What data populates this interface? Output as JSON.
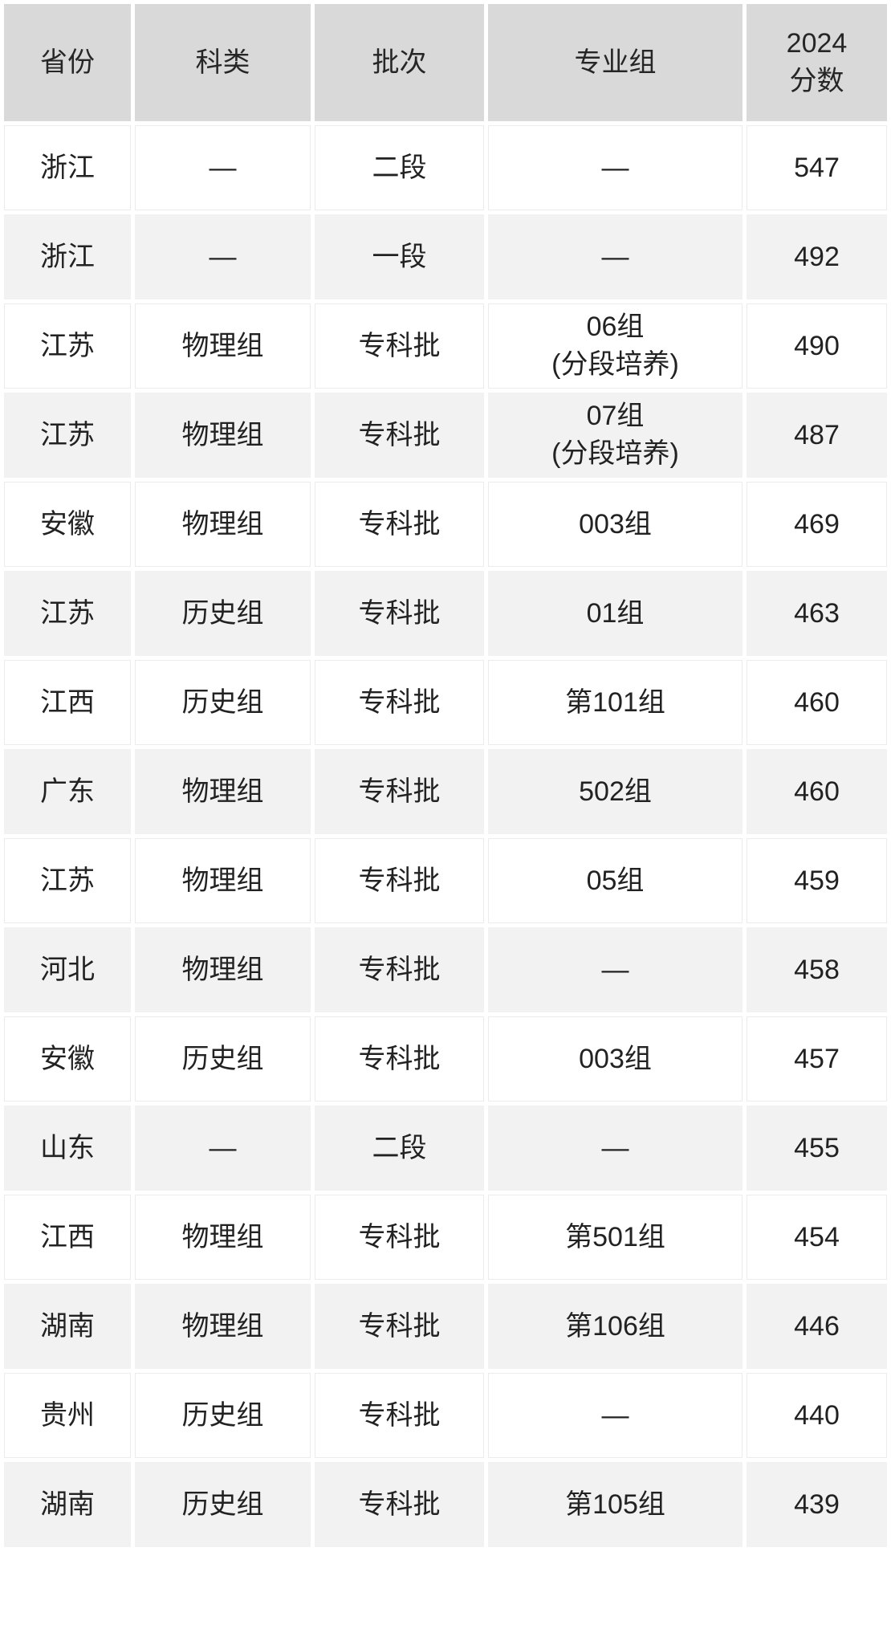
{
  "table": {
    "columns": [
      {
        "key": "province",
        "label": "省份"
      },
      {
        "key": "category",
        "label": "科类"
      },
      {
        "key": "batch",
        "label": "批次"
      },
      {
        "key": "group",
        "label": "专业组"
      },
      {
        "key": "score",
        "label": "2024\n分数"
      }
    ],
    "empty_marker": "—",
    "rows": [
      {
        "province": "浙江",
        "category": "—",
        "batch": "二段",
        "group": "—",
        "score": "547"
      },
      {
        "province": "浙江",
        "category": "—",
        "batch": "一段",
        "group": "—",
        "score": "492"
      },
      {
        "province": "江苏",
        "category": "物理组",
        "batch": "专科批",
        "group": "06组\n(分段培养)",
        "score": "490"
      },
      {
        "province": "江苏",
        "category": "物理组",
        "batch": "专科批",
        "group": "07组\n(分段培养)",
        "score": "487"
      },
      {
        "province": "安徽",
        "category": "物理组",
        "batch": "专科批",
        "group": "003组",
        "score": "469"
      },
      {
        "province": "江苏",
        "category": "历史组",
        "batch": "专科批",
        "group": "01组",
        "score": "463"
      },
      {
        "province": "江西",
        "category": "历史组",
        "batch": "专科批",
        "group": "第101组",
        "score": "460"
      },
      {
        "province": "广东",
        "category": "物理组",
        "batch": "专科批",
        "group": "502组",
        "score": "460"
      },
      {
        "province": "江苏",
        "category": "物理组",
        "batch": "专科批",
        "group": "05组",
        "score": "459"
      },
      {
        "province": "河北",
        "category": "物理组",
        "batch": "专科批",
        "group": "—",
        "score": "458"
      },
      {
        "province": "安徽",
        "category": "历史组",
        "batch": "专科批",
        "group": "003组",
        "score": "457"
      },
      {
        "province": "山东",
        "category": "—",
        "batch": "二段",
        "group": "—",
        "score": "455"
      },
      {
        "province": "江西",
        "category": "物理组",
        "batch": "专科批",
        "group": "第501组",
        "score": "454"
      },
      {
        "province": "湖南",
        "category": "物理组",
        "batch": "专科批",
        "group": "第106组",
        "score": "446"
      },
      {
        "province": "贵州",
        "category": "历史组",
        "batch": "专科批",
        "group": "—",
        "score": "440"
      },
      {
        "province": "湖南",
        "category": "历史组",
        "batch": "专科批",
        "group": "第105组",
        "score": "439"
      }
    ],
    "colors": {
      "header_bg": "#d9d9d9",
      "row_bg": "#ffffff",
      "row_alt_bg": "#f2f2f2",
      "text": "#222222"
    }
  },
  "chart_data": {
    "type": "table",
    "title": "",
    "columns": [
      "省份",
      "科类",
      "批次",
      "专业组",
      "2024分数"
    ],
    "rows": [
      [
        "浙江",
        "—",
        "二段",
        "—",
        547
      ],
      [
        "浙江",
        "—",
        "一段",
        "—",
        492
      ],
      [
        "江苏",
        "物理组",
        "专科批",
        "06组(分段培养)",
        490
      ],
      [
        "江苏",
        "物理组",
        "专科批",
        "07组(分段培养)",
        487
      ],
      [
        "安徽",
        "物理组",
        "专科批",
        "003组",
        469
      ],
      [
        "江苏",
        "历史组",
        "专科批",
        "01组",
        463
      ],
      [
        "江西",
        "历史组",
        "专科批",
        "第101组",
        460
      ],
      [
        "广东",
        "物理组",
        "专科批",
        "502组",
        460
      ],
      [
        "江苏",
        "物理组",
        "专科批",
        "05组",
        459
      ],
      [
        "河北",
        "物理组",
        "专科批",
        "—",
        458
      ],
      [
        "安徽",
        "历史组",
        "专科批",
        "003组",
        457
      ],
      [
        "山东",
        "—",
        "二段",
        "—",
        455
      ],
      [
        "江西",
        "物理组",
        "专科批",
        "第501组",
        454
      ],
      [
        "湖南",
        "物理组",
        "专科批",
        "第106组",
        446
      ],
      [
        "贵州",
        "历史组",
        "专科批",
        "—",
        440
      ],
      [
        "湖南",
        "历史组",
        "专科批",
        "第105组",
        439
      ]
    ],
    "layout": {
      "header_shaded": true,
      "zebra_stripes": true,
      "gridlines": "white-gutters"
    }
  }
}
